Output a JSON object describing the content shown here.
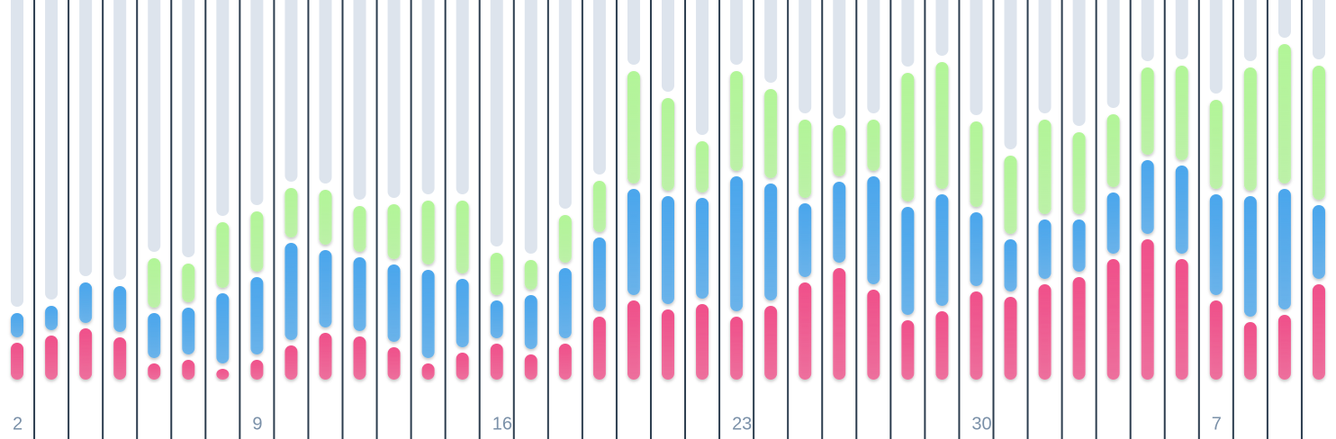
{
  "chart_data": {
    "type": "stacked-bar",
    "categories": [
      "2",
      null,
      null,
      null,
      null,
      null,
      null,
      "9",
      null,
      null,
      null,
      null,
      null,
      null,
      "16",
      null,
      null,
      null,
      null,
      null,
      null,
      "23",
      null,
      null,
      null,
      null,
      null,
      null,
      "30",
      null,
      null,
      null,
      null,
      null,
      null,
      "7",
      null,
      null,
      null
    ],
    "series": [
      {
        "color": "#f0508a",
        "values": [
          47,
          55,
          63,
          53,
          24,
          28,
          18,
          28,
          44,
          58,
          54,
          42,
          24,
          36,
          46,
          34,
          46,
          76,
          94,
          84,
          90,
          76,
          88,
          114,
          130,
          106,
          72,
          82,
          104,
          98,
          112,
          120,
          140,
          162,
          140,
          94,
          70,
          78,
          112
        ]
      },
      {
        "color": "#4aa6ec",
        "values": [
          33,
          33,
          51,
          57,
          56,
          58,
          84,
          92,
          114,
          92,
          88,
          92,
          104,
          82,
          48,
          66,
          84,
          88,
          124,
          126,
          118,
          156,
          136,
          88,
          96,
          126,
          126,
          130,
          88,
          64,
          72,
          64,
          74,
          88,
          104,
          118,
          140,
          140,
          88
        ]
      },
      {
        "color": "#b2f598",
        "values": [
          0,
          0,
          0,
          0,
          61,
          49,
          79,
          73,
          61,
          67,
          57,
          67,
          77,
          87,
          53,
          39,
          59,
          63,
          131,
          109,
          63,
          117,
          105,
          93,
          63,
          63,
          149,
          147,
          101,
          93,
          111,
          97,
          87,
          103,
          111,
          105,
          143,
          161,
          155
        ]
      }
    ],
    "track_color": "#dde4ed",
    "ylim": [
      0,
      425
    ]
  }
}
